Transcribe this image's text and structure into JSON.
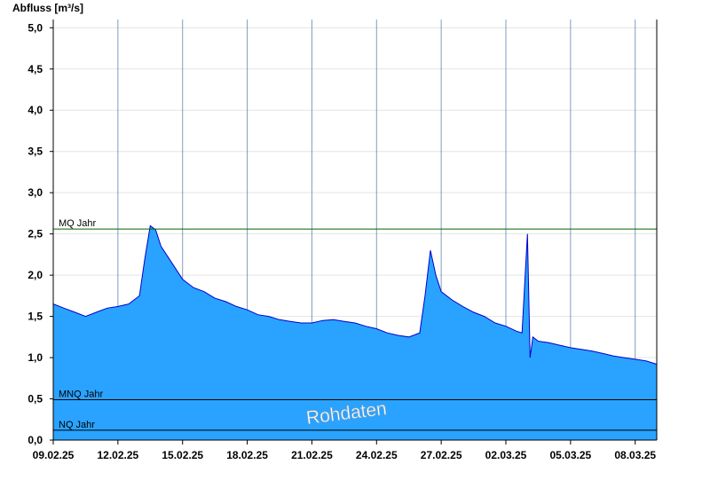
{
  "chart_data": {
    "type": "area",
    "ylabel": "Abfluss [m³/s]",
    "ylim": [
      0,
      5.1
    ],
    "yticks": [
      "0,0",
      "0,5",
      "1,0",
      "1,5",
      "2,0",
      "2,5",
      "3,0",
      "3,5",
      "4,0",
      "4,5",
      "5,0"
    ],
    "ytick_values": [
      0,
      0.5,
      1.0,
      1.5,
      2.0,
      2.5,
      3.0,
      3.5,
      4.0,
      4.5,
      5.0
    ],
    "xlim": [
      "2025-02-09",
      "2025-03-09"
    ],
    "xticks": [
      "09.02.25",
      "12.02.25",
      "15.02.25",
      "18.02.25",
      "21.02.25",
      "24.02.25",
      "27.02.25",
      "02.03.25",
      "05.03.25",
      "08.03.25"
    ],
    "xtick_dates": [
      "2025-02-09",
      "2025-02-12",
      "2025-02-15",
      "2025-02-18",
      "2025-02-21",
      "2025-02-24",
      "2025-02-27",
      "2025-03-02",
      "2025-03-05",
      "2025-03-08"
    ],
    "grid": true,
    "series": [
      {
        "x": [
          "2025-02-09",
          "2025-02-09 12:00",
          "2025-02-10",
          "2025-02-10 12:00",
          "2025-02-11",
          "2025-02-11 12:00",
          "2025-02-12",
          "2025-02-12 12:00",
          "2025-02-13",
          "2025-02-13 06:00",
          "2025-02-13 12:00",
          "2025-02-13 18:00",
          "2025-02-14",
          "2025-02-14 12:00",
          "2025-02-15",
          "2025-02-15 12:00",
          "2025-02-16",
          "2025-02-16 12:00",
          "2025-02-17",
          "2025-02-17 12:00",
          "2025-02-18",
          "2025-02-18 12:00",
          "2025-02-19",
          "2025-02-19 12:00",
          "2025-02-20",
          "2025-02-20 12:00",
          "2025-02-21",
          "2025-02-21 12:00",
          "2025-02-22",
          "2025-02-22 12:00",
          "2025-02-23",
          "2025-02-23 12:00",
          "2025-02-24",
          "2025-02-24 12:00",
          "2025-02-25",
          "2025-02-25 12:00",
          "2025-02-26",
          "2025-02-26 06:00",
          "2025-02-26 12:00",
          "2025-02-26 18:00",
          "2025-02-27",
          "2025-02-27 12:00",
          "2025-02-28",
          "2025-02-28 12:00",
          "2025-03-01",
          "2025-03-01 12:00",
          "2025-03-02",
          "2025-03-02 12:00",
          "2025-03-02 18:00",
          "2025-03-03",
          "2025-03-03 03:00",
          "2025-03-03 06:00",
          "2025-03-03 12:00",
          "2025-03-04",
          "2025-03-04 12:00",
          "2025-03-05",
          "2025-03-05 12:00",
          "2025-03-06",
          "2025-03-06 12:00",
          "2025-03-07",
          "2025-03-07 12:00",
          "2025-03-08",
          "2025-03-08 12:00",
          "2025-03-09"
        ],
        "values": [
          1.65,
          1.6,
          1.55,
          1.5,
          1.55,
          1.6,
          1.62,
          1.65,
          1.75,
          2.2,
          2.6,
          2.55,
          2.35,
          2.15,
          1.95,
          1.85,
          1.8,
          1.72,
          1.68,
          1.62,
          1.58,
          1.52,
          1.5,
          1.46,
          1.44,
          1.42,
          1.42,
          1.45,
          1.46,
          1.44,
          1.42,
          1.38,
          1.35,
          1.3,
          1.27,
          1.25,
          1.3,
          1.75,
          2.3,
          2.0,
          1.8,
          1.7,
          1.62,
          1.55,
          1.5,
          1.42,
          1.38,
          1.32,
          1.3,
          2.5,
          1.0,
          1.25,
          1.2,
          1.18,
          1.15,
          1.12,
          1.1,
          1.08,
          1.05,
          1.02,
          1.0,
          0.98,
          0.96,
          0.92
        ]
      }
    ],
    "reference_lines": [
      {
        "label": "MQ Jahr",
        "value": 2.56,
        "color": "#006400"
      },
      {
        "label": "MNQ Jahr",
        "value": 0.49,
        "color": "#000000"
      },
      {
        "label": "NQ Jahr",
        "value": 0.12,
        "color": "#000000"
      }
    ],
    "fill_color": "#29a3ff",
    "line_color": "#0000cc",
    "annotation": "Rohdaten"
  }
}
